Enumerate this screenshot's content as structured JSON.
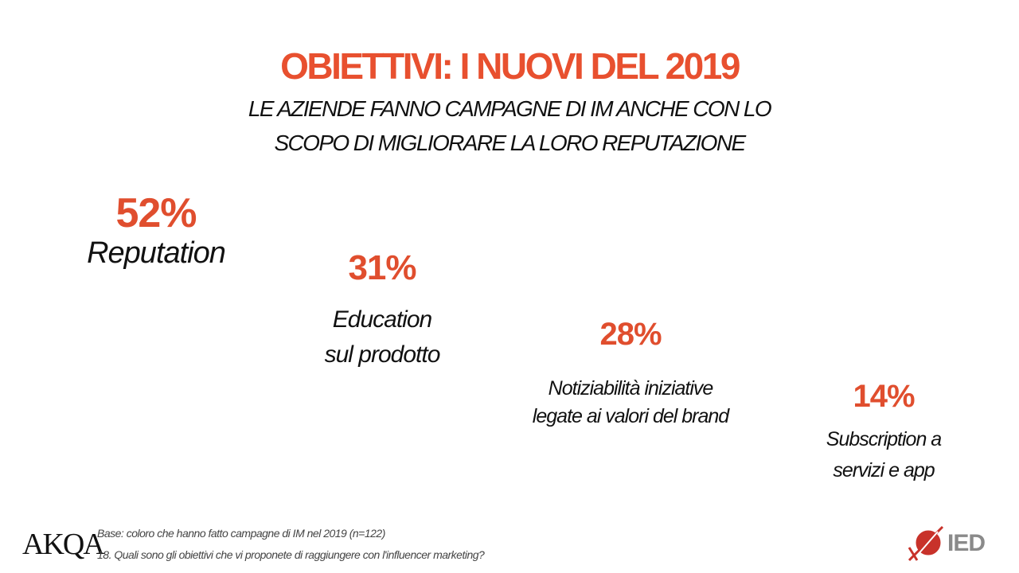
{
  "title": "OBIETTIVI: I NUOVI DEL 2019",
  "subtitle": {
    "line1": "LE AZIENDE FANNO CAMPAGNE DI IM ANCHE CON LO",
    "line2": "SCOPO DI MIGLIORARE LA LORO REPUTAZIONE"
  },
  "items": [
    {
      "value": "52%",
      "label_line1": "Reputation",
      "label_line2": ""
    },
    {
      "value": "31%",
      "label_line1": "Education",
      "label_line2": "sul prodotto"
    },
    {
      "value": "28%",
      "label_line1": "Notiziabilità iniziative",
      "label_line2": "legate ai valori del brand"
    },
    {
      "value": "14%",
      "label_line1": "Subscription a",
      "label_line2": "servizi e app"
    }
  ],
  "footer": {
    "base": "Base: coloro che hanno fatto campagne di IM nel 2019 (n=122)",
    "question": "18. Quali sono gli obiettivi che vi proponete di raggiungere con l'influencer marketing?",
    "logo_left": "AKQA",
    "logo_right": "IED"
  },
  "colors": {
    "accent": "#e8502f",
    "text": "#111111",
    "footer": "#444444",
    "ied_red": "#c8322a",
    "ied_gray": "#8a8a8a"
  }
}
